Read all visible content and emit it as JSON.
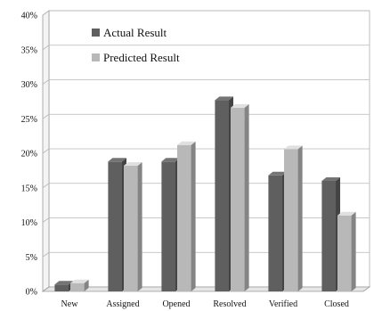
{
  "chart_data": {
    "type": "bar",
    "categories": [
      "New",
      "Assigned",
      "Opened",
      "Resolved",
      "Verified",
      "Closed"
    ],
    "series": [
      {
        "name": "Actual Result",
        "values": [
          1.0,
          18.8,
          18.8,
          27.7,
          16.8,
          16.0
        ],
        "color": "#5f5f5f"
      },
      {
        "name": "Predicted Result",
        "values": [
          1.2,
          18.2,
          21.2,
          26.6,
          20.6,
          11.0
        ],
        "color": "#b8b8b8"
      }
    ],
    "ylim": [
      0,
      40
    ],
    "yticks": [
      "0%",
      "5%",
      "10%",
      "15%",
      "20%",
      "25%",
      "30%",
      "35%",
      "40%"
    ],
    "grid": true,
    "legend_position": "top-left",
    "style": "3d-column"
  }
}
